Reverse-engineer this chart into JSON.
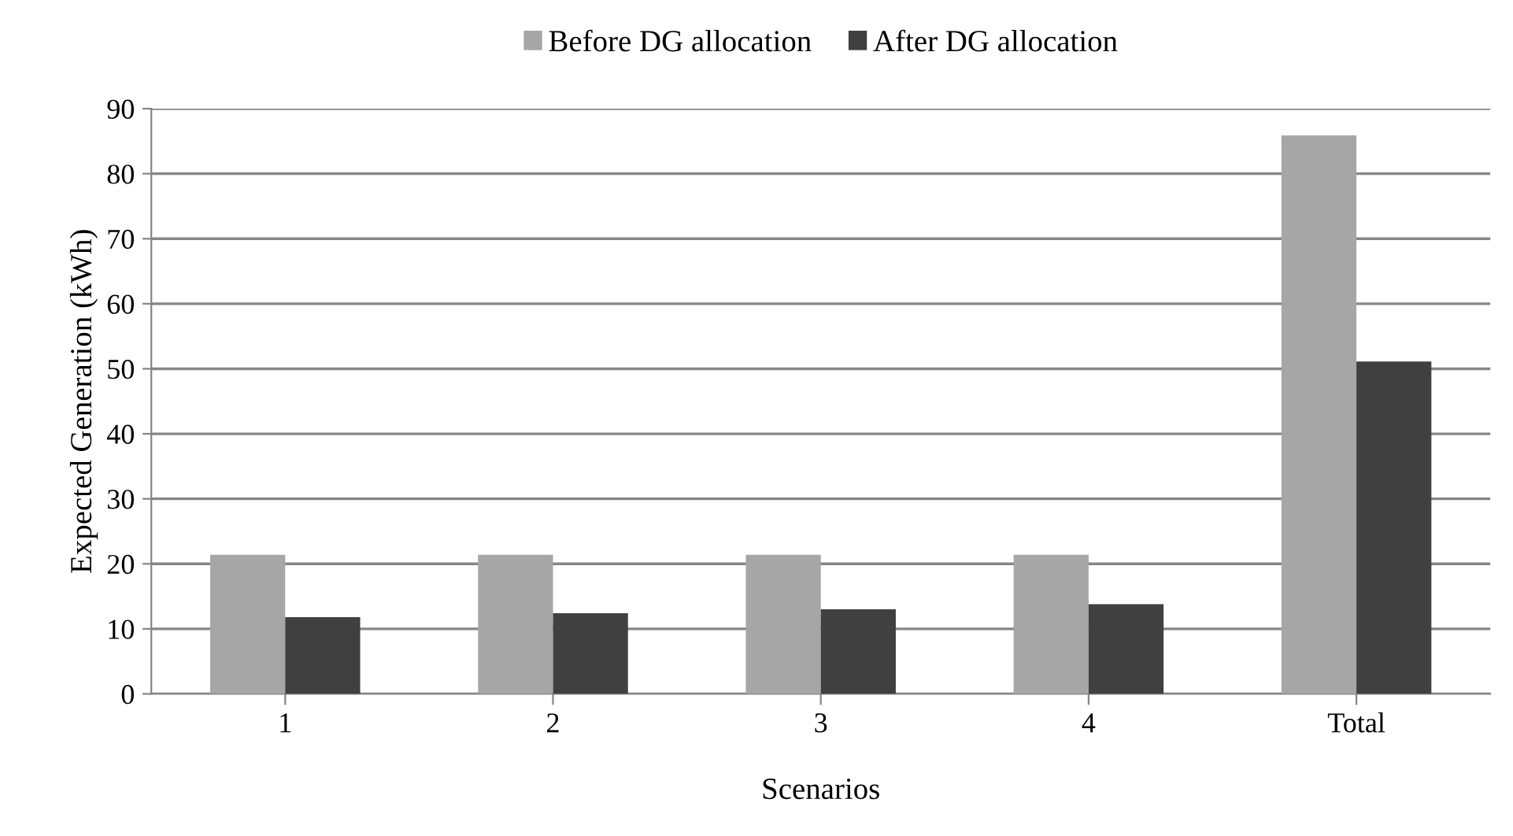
{
  "chart_data": {
    "type": "bar",
    "xlabel": "Scenarios",
    "ylabel": "Expected Generation (kWh)",
    "categories": [
      "1",
      "2",
      "3",
      "4",
      "Total"
    ],
    "series": [
      {
        "name": "Before DG allocation",
        "color": "#a6a6a6",
        "values": [
          21.4,
          21.4,
          21.4,
          21.4,
          85.9
        ]
      },
      {
        "name": "After DG allocation",
        "color": "#404040",
        "values": [
          11.8,
          12.4,
          13.0,
          13.8,
          51.1
        ]
      }
    ],
    "ylim": [
      0,
      90
    ],
    "yticks": [
      0,
      10,
      20,
      30,
      40,
      50,
      60,
      70,
      80,
      90
    ],
    "grid": "y",
    "legend": "top"
  }
}
